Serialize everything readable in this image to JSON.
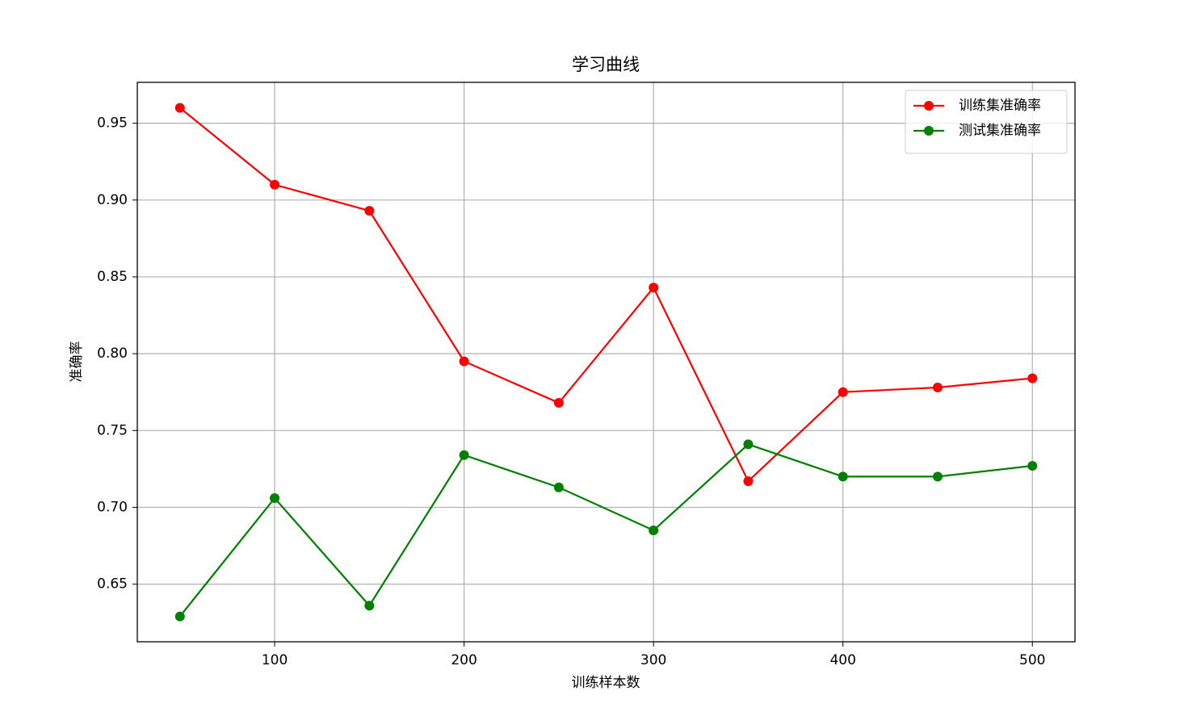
{
  "chart_data": {
    "type": "line",
    "title": "学习曲线",
    "xlabel": "训练样本数",
    "ylabel": "准确率",
    "x": [
      50,
      100,
      150,
      200,
      250,
      300,
      350,
      400,
      450,
      500
    ],
    "series": [
      {
        "name": "训练集准确率",
        "color": "#ff0000",
        "values": [
          0.96,
          0.91,
          0.893,
          0.795,
          0.768,
          0.843,
          0.717,
          0.775,
          0.778,
          0.784
        ]
      },
      {
        "name": "测试集准确率",
        "color": "#008000",
        "values": [
          0.629,
          0.706,
          0.636,
          0.734,
          0.713,
          0.685,
          0.741,
          0.72,
          0.72,
          0.727
        ]
      }
    ],
    "xlim": [
      27.5,
      522.5
    ],
    "xticks": [
      100,
      200,
      300,
      400,
      500
    ],
    "ylim": [
      0.6125,
      0.9766
    ],
    "yticks": [
      0.65,
      {
        "value": 0.7,
        "label": "0.70"
      },
      0.75,
      {
        "value": 0.8,
        "label": "0.80"
      },
      0.85,
      {
        "value": 0.9,
        "label": "0.90"
      },
      0.95
    ],
    "grid": true,
    "legend": "upper right"
  }
}
